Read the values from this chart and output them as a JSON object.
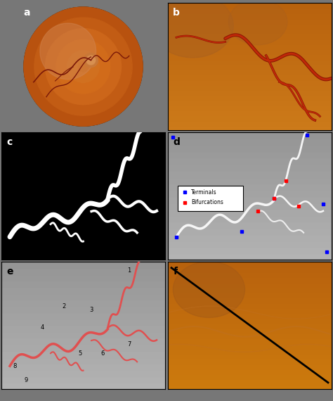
{
  "panel_labels": [
    "a",
    "b",
    "c",
    "d",
    "e",
    "f"
  ],
  "label_color_light": "white",
  "label_color_dark": "black",
  "label_fontsize": 10,
  "fig_bg": "#777777",
  "legend_d": {
    "terminals_color": "blue",
    "bifurcations_color": "red",
    "label_terminals": "Terminals",
    "label_bifurcations": "Bifurcations"
  },
  "segment_color_e": "#e05050",
  "panel_a_bg": "#1a0a00",
  "panel_a_circle_color": "#c87030",
  "panel_a_inner_color": "#e09050",
  "panel_b_bg": "#d08030",
  "panel_b_vessel_color": "#b03010",
  "panel_c_bg": "black",
  "panel_c_vessel_color": "white",
  "panel_d_bg": "#b0b0b0",
  "panel_e_bg": "#b0b0b0",
  "panel_f_bg": "#d08030",
  "panel_f_line_color": "black"
}
